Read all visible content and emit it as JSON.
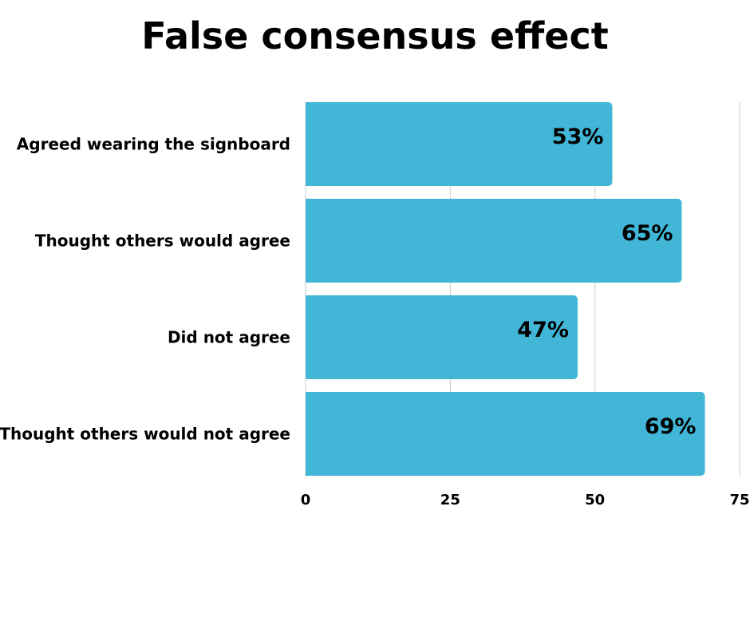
{
  "chart_data": {
    "type": "bar",
    "orientation": "horizontal",
    "title": "False consensus effect",
    "categories": [
      "Agreed wearing the signboard",
      "Thought others would agree",
      "Did not agree",
      "Thought others would not agree"
    ],
    "values": [
      53,
      65,
      47,
      69
    ],
    "value_labels": [
      "53%",
      "65%",
      "47%",
      "69%"
    ],
    "xlim": [
      0,
      75
    ],
    "x_ticks": [
      0,
      25,
      50,
      75
    ],
    "x_tick_labels": [
      "0",
      "25",
      "50",
      "75"
    ],
    "xlabel": "",
    "ylabel": "",
    "grid": true,
    "legend": false,
    "colors": {
      "bar": "#41b6d6",
      "grid": "#cccccc",
      "text": "#000000"
    }
  }
}
